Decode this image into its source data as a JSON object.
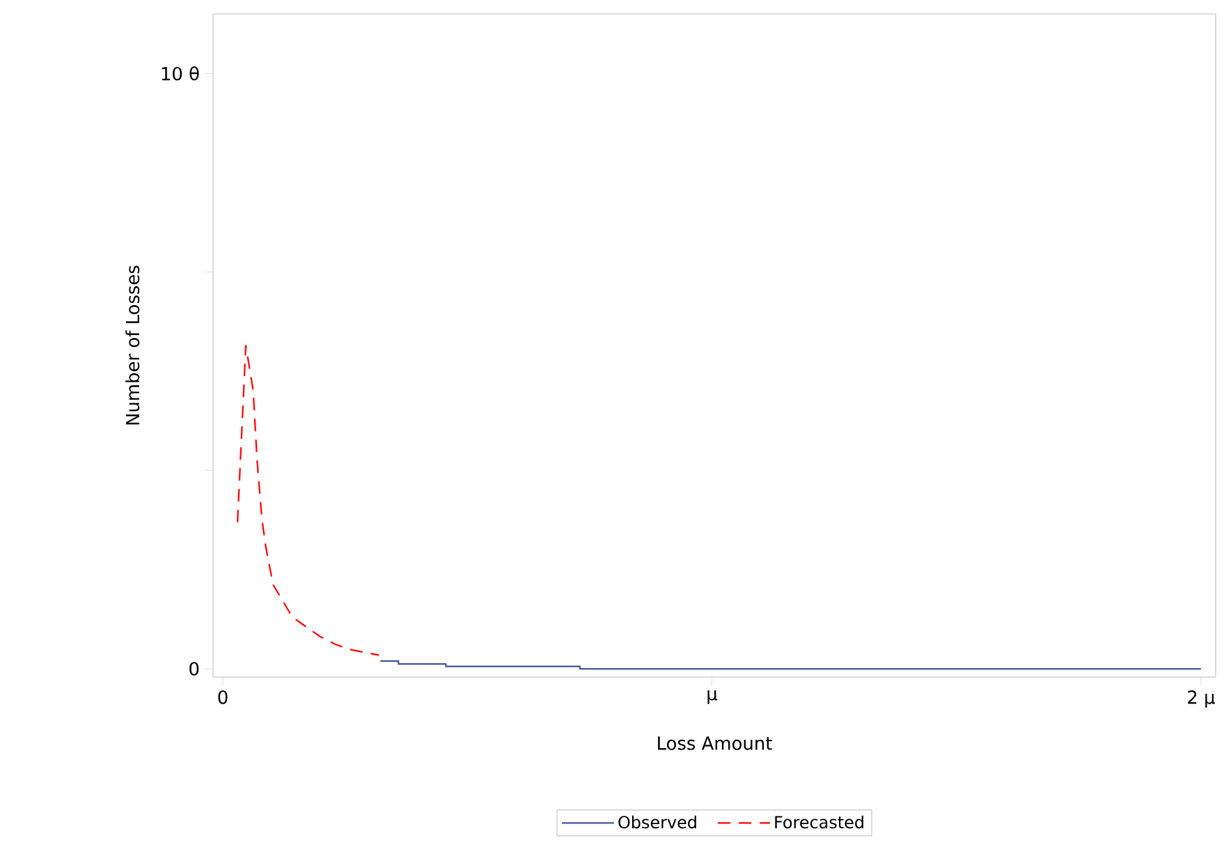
{
  "chart_data": {
    "type": "line",
    "xlabel": "Loss Amount",
    "ylabel": "Number of Losses",
    "xlim": [
      -0.02,
      2.03
    ],
    "ylim": [
      -0.14,
      11.0
    ],
    "xticks": [
      0,
      {
        "value": 1,
        "label": "μ"
      },
      {
        "value": 2,
        "label": "2 μ"
      }
    ],
    "yticks": [
      0,
      {
        "value": 3.333,
        "label": null
      },
      {
        "value": 6.667,
        "label": null
      },
      {
        "value": 10,
        "label": "10 θ"
      }
    ],
    "legend": "bottom",
    "grid": false,
    "series": [
      {
        "name": "Observed",
        "type": "step",
        "color": "#445599",
        "line_style": "solid",
        "x": [
          0.322,
          0.359,
          0.456,
          0.73,
          2.0
        ],
        "values": [
          0.13,
          0.08,
          0.04,
          0,
          0
        ]
      },
      {
        "name": "Forecasted",
        "color": "#ff0000",
        "line_style": "dashed",
        "x": [
          0.03,
          0.047,
          0.062,
          0.07,
          0.08,
          0.088,
          0.103,
          0.142,
          0.199,
          0.228,
          0.256,
          0.319
        ],
        "values": [
          2.46,
          5.43,
          4.68,
          3.51,
          2.51,
          2.04,
          1.41,
          0.87,
          0.54,
          0.42,
          0.33,
          0.23
        ]
      }
    ]
  }
}
